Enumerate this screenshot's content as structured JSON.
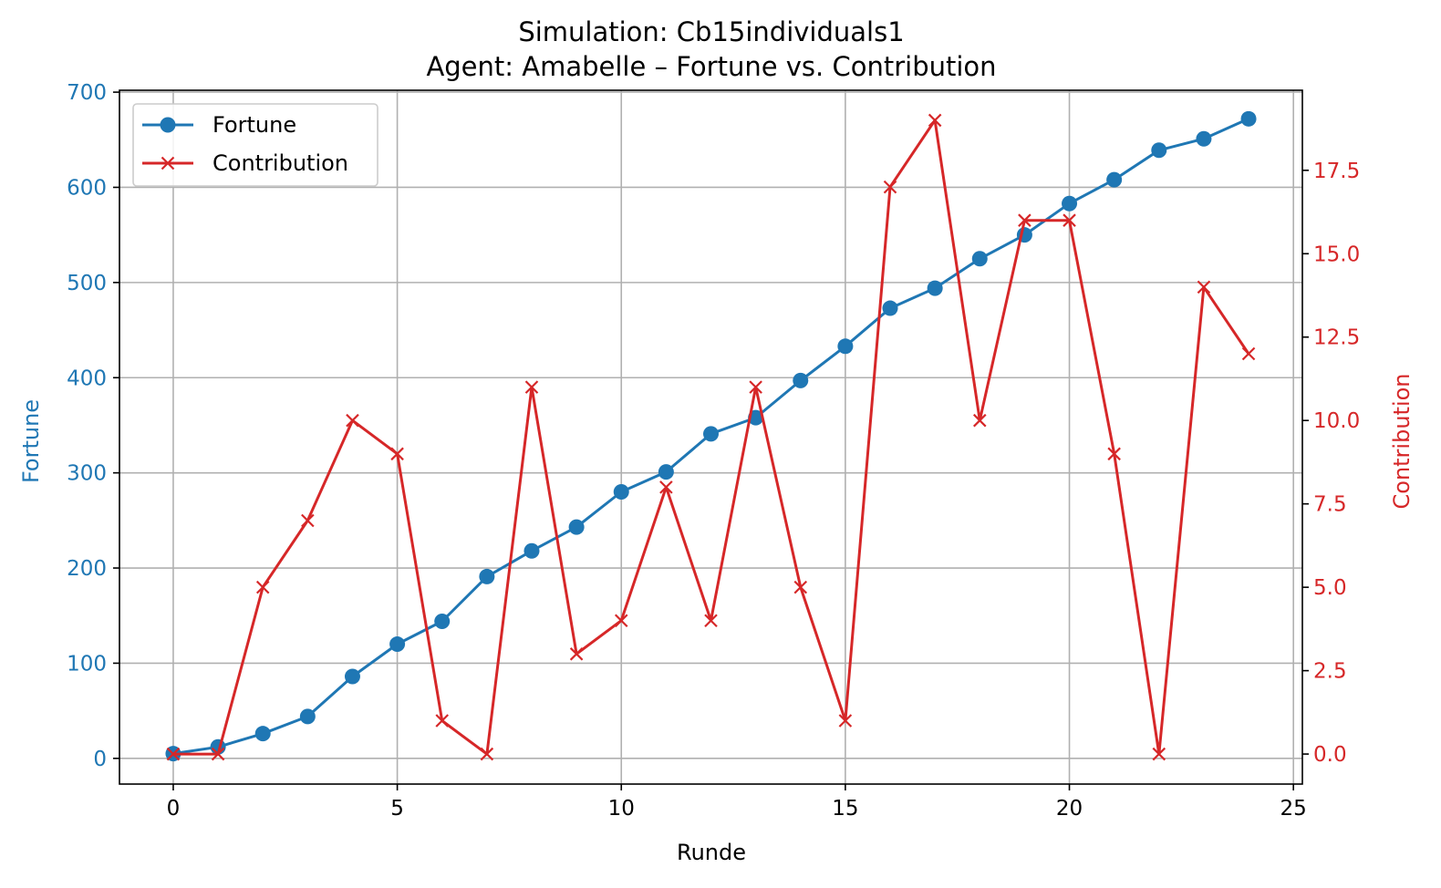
{
  "chart_data": {
    "type": "line",
    "title": "Simulation: Cb15individuals1",
    "subtitle": "Agent: Amabelle – Fortune vs. Contribution",
    "xlabel": "Runde",
    "ylabel": "Fortune",
    "y2label": "Contribution",
    "x": [
      0,
      1,
      2,
      3,
      4,
      5,
      6,
      7,
      8,
      9,
      10,
      11,
      12,
      13,
      14,
      15,
      16,
      17,
      18,
      19,
      20,
      21,
      22,
      23,
      24
    ],
    "xlim": [
      -1.2,
      25.2
    ],
    "ylim": [
      -27,
      702
    ],
    "y2lim": [
      -0.9,
      19.9
    ],
    "xticks": [
      0,
      5,
      10,
      15,
      20,
      25
    ],
    "yticks": [
      0,
      100,
      200,
      300,
      400,
      500,
      600,
      700
    ],
    "y2ticks": [
      0.0,
      2.5,
      5.0,
      7.5,
      10.0,
      12.5,
      15.0,
      17.5
    ],
    "xtick_labels": [
      "0",
      "5",
      "10",
      "15",
      "20",
      "25"
    ],
    "ytick_labels": [
      "0",
      "100",
      "200",
      "300",
      "400",
      "500",
      "600",
      "700"
    ],
    "y2tick_labels": [
      "0.0",
      "2.5",
      "5.0",
      "7.5",
      "10.0",
      "12.5",
      "15.0",
      "17.5"
    ],
    "grid": true,
    "legend_position": "top-left",
    "series": [
      {
        "name": "Fortune",
        "axis": "left",
        "color": "#1f77b4",
        "marker": "circle",
        "values": [
          5,
          12,
          26,
          44,
          86,
          120,
          144,
          191,
          218,
          243,
          280,
          301,
          341,
          358,
          397,
          433,
          473,
          494,
          525,
          550,
          583,
          608,
          639,
          651,
          672
        ]
      },
      {
        "name": "Contribution",
        "axis": "right",
        "color": "#d62728",
        "marker": "x",
        "values": [
          0,
          0,
          5,
          7,
          10,
          9,
          1,
          0,
          11,
          3,
          4,
          8,
          4,
          11,
          5,
          1,
          17,
          19,
          10,
          16,
          16,
          9,
          0,
          14,
          12
        ]
      }
    ]
  }
}
